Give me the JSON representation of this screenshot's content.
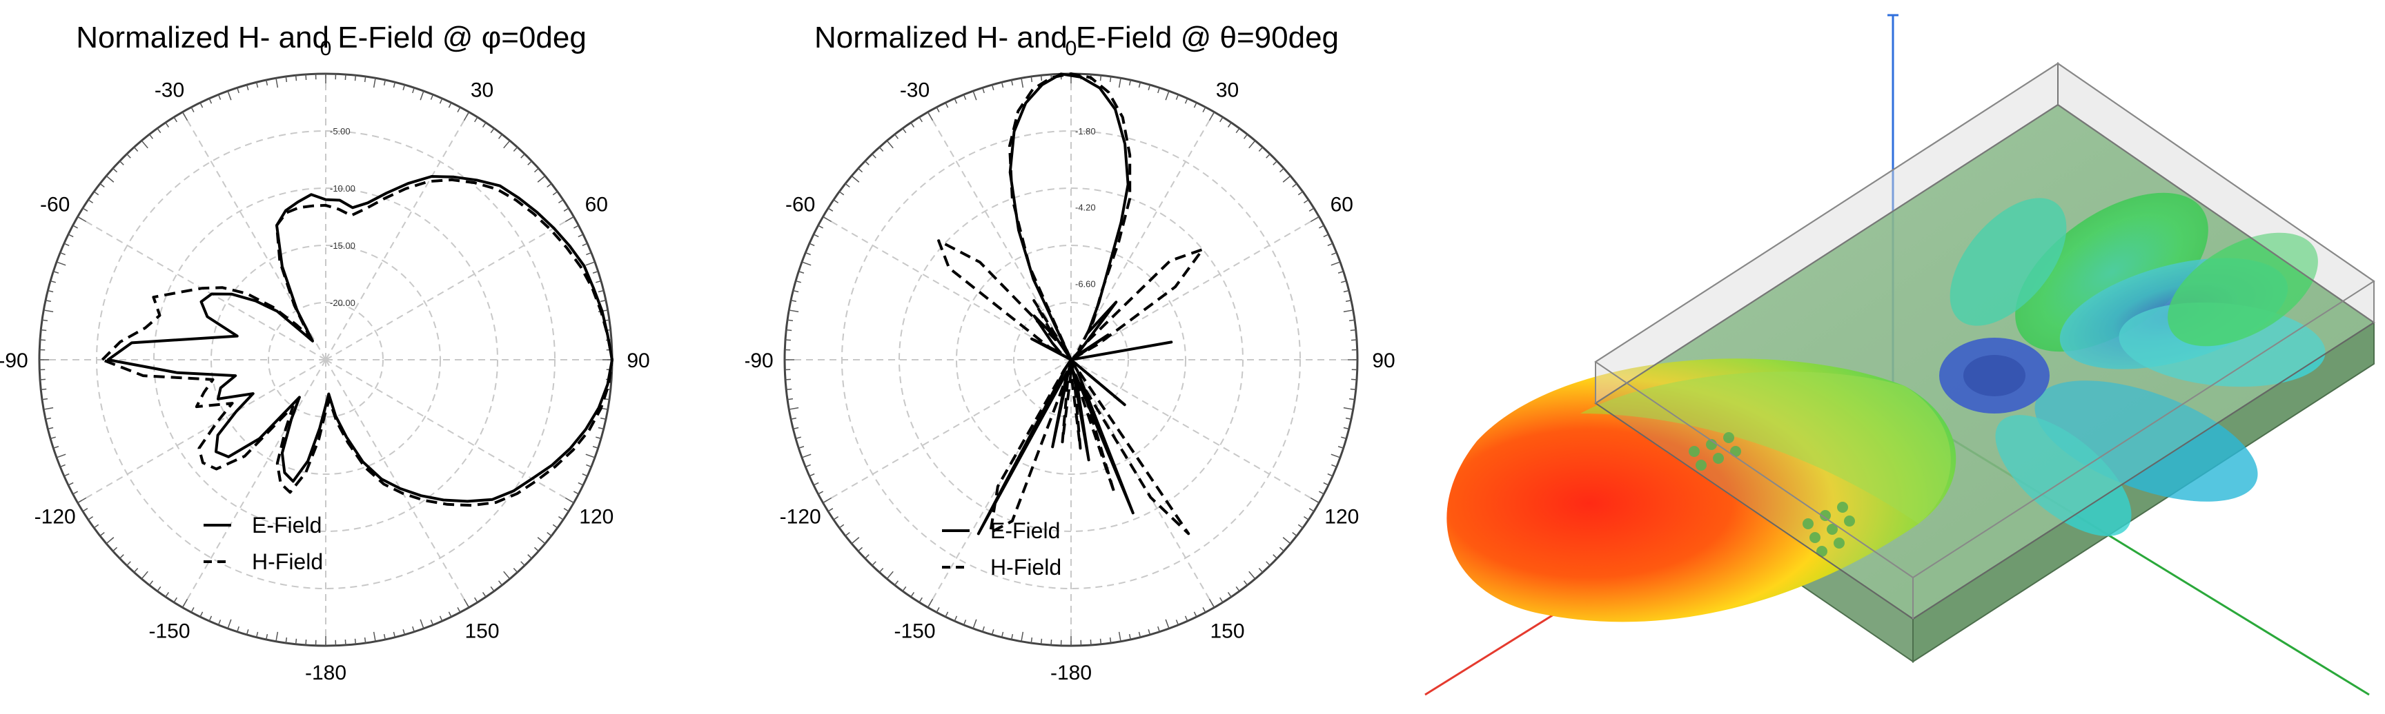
{
  "chart_data": [
    {
      "type": "polar",
      "title": "Normalized H- and E-Field @ φ=0deg",
      "angle_labels": [
        "0",
        "30",
        "60",
        "90",
        "120",
        "150",
        "-180",
        "-150",
        "-120",
        "-90",
        "-60",
        "-30"
      ],
      "radial_labels": [
        "-5.00",
        "-10.00",
        "-15.00",
        "-20.00"
      ],
      "radial_range_db": [
        -25,
        0
      ],
      "grid": true,
      "legend_position": "bottom-left",
      "series": [
        {
          "name": "E-Field",
          "line": "solid",
          "points": [
            [
              -90,
              -6
            ],
            [
              -85,
              -8
            ],
            [
              -75,
              -17
            ],
            [
              -70,
              -14
            ],
            [
              -65,
              -13
            ],
            [
              -60,
              -13.5
            ],
            [
              -55,
              -15
            ],
            [
              -50,
              -17
            ],
            [
              -45,
              -19
            ],
            [
              -40,
              -22
            ],
            [
              -35,
              -23
            ],
            [
              -30,
              -20
            ],
            [
              -25,
              -16
            ],
            [
              -20,
              -12.5
            ],
            [
              -15,
              -11.5
            ],
            [
              -10,
              -11
            ],
            [
              -5,
              -10.5
            ],
            [
              0,
              -11
            ],
            [
              5,
              -11
            ],
            [
              10,
              -11.5
            ],
            [
              15,
              -10.8
            ],
            [
              20,
              -9.5
            ],
            [
              25,
              -8
            ],
            [
              30,
              -6.5
            ],
            [
              35,
              -5.5
            ],
            [
              40,
              -4.5
            ],
            [
              45,
              -3.5
            ],
            [
              50,
              -3
            ],
            [
              55,
              -2.5
            ],
            [
              60,
              -2
            ],
            [
              65,
              -1.5
            ],
            [
              70,
              -1
            ],
            [
              75,
              -0.8
            ],
            [
              80,
              -0.5
            ],
            [
              85,
              -0.3
            ],
            [
              90,
              0
            ],
            [
              95,
              -0.3
            ],
            [
              100,
              -0.8
            ],
            [
              105,
              -1.5
            ],
            [
              110,
              -2.3
            ],
            [
              115,
              -3.2
            ],
            [
              120,
              -4.2
            ],
            [
              125,
              -5
            ],
            [
              130,
              -6
            ],
            [
              135,
              -7.5
            ],
            [
              140,
              -9
            ],
            [
              145,
              -10.5
            ],
            [
              150,
              -12
            ],
            [
              155,
              -13.5
            ],
            [
              160,
              -15.5
            ],
            [
              165,
              -18
            ],
            [
              170,
              -20
            ],
            [
              175,
              -22
            ],
            [
              180,
              -21
            ],
            [
              -175,
              -19
            ],
            [
              -170,
              -16
            ],
            [
              -165,
              -14
            ],
            [
              -160,
              -14.5
            ],
            [
              -155,
              -16
            ],
            [
              -150,
              -19
            ],
            [
              -145,
              -21
            ],
            [
              -140,
              -16
            ],
            [
              -135,
              -13
            ],
            [
              -130,
              -12.5
            ],
            [
              -125,
              -13.5
            ],
            [
              -120,
              -16
            ],
            [
              -115,
              -18
            ],
            [
              -110,
              -15
            ],
            [
              -105,
              -15.5
            ],
            [
              -100,
              -17
            ],
            [
              -95,
              -12
            ],
            [
              -90,
              -6
            ]
          ]
        },
        {
          "name": "H-Field",
          "line": "dashed",
          "points": [
            [
              -90,
              -5.5
            ],
            [
              -85,
              -7
            ],
            [
              -80,
              -9
            ],
            [
              -75,
              -10
            ],
            [
              -70,
              -9
            ],
            [
              -65,
              -11
            ],
            [
              -60,
              -12.5
            ],
            [
              -55,
              -14
            ],
            [
              -50,
              -16
            ],
            [
              -45,
              -18.5
            ],
            [
              -40,
              -21
            ],
            [
              -35,
              -22.5
            ],
            [
              -30,
              -19.5
            ],
            [
              -25,
              -15.5
            ],
            [
              -20,
              -12.5
            ],
            [
              -15,
              -11.7
            ],
            [
              -10,
              -11.5
            ],
            [
              -5,
              -11.5
            ],
            [
              0,
              -11.5
            ],
            [
              5,
              -11.8
            ],
            [
              10,
              -12.2
            ],
            [
              15,
              -11.3
            ],
            [
              20,
              -10
            ],
            [
              25,
              -8.5
            ],
            [
              30,
              -7
            ],
            [
              35,
              -5.8
            ],
            [
              40,
              -4.8
            ],
            [
              45,
              -3.9
            ],
            [
              50,
              -3.3
            ],
            [
              55,
              -2.8
            ],
            [
              60,
              -2.3
            ],
            [
              65,
              -1.8
            ],
            [
              70,
              -1.3
            ],
            [
              75,
              -0.9
            ],
            [
              80,
              -0.6
            ],
            [
              85,
              -0.3
            ],
            [
              90,
              0
            ],
            [
              95,
              -0.2
            ],
            [
              100,
              -0.6
            ],
            [
              105,
              -1.2
            ],
            [
              110,
              -2
            ],
            [
              115,
              -2.9
            ],
            [
              120,
              -3.8
            ],
            [
              125,
              -4.6
            ],
            [
              130,
              -5.6
            ],
            [
              135,
              -7
            ],
            [
              140,
              -8.5
            ],
            [
              145,
              -10
            ],
            [
              150,
              -11.5
            ],
            [
              155,
              -13
            ],
            [
              160,
              -15
            ],
            [
              165,
              -17.5
            ],
            [
              170,
              -19.5
            ],
            [
              175,
              -21.5
            ],
            [
              180,
              -20.5
            ],
            [
              -175,
              -18
            ],
            [
              -170,
              -15
            ],
            [
              -165,
              -13
            ],
            [
              -160,
              -13.5
            ],
            [
              -155,
              -15
            ],
            [
              -150,
              -18
            ],
            [
              -145,
              -20
            ],
            [
              -140,
              -14
            ],
            [
              -135,
              -11.5
            ],
            [
              -130,
              -11
            ],
            [
              -125,
              -11.5
            ],
            [
              -120,
              -14
            ],
            [
              -115,
              -16
            ],
            [
              -110,
              -13
            ],
            [
              -105,
              -14
            ],
            [
              -100,
              -15
            ],
            [
              -95,
              -9
            ],
            [
              -90,
              -5.5
            ]
          ]
        }
      ]
    },
    {
      "type": "polar",
      "title": "Normalized H- and E-Field @ θ=90deg",
      "angle_labels": [
        "0",
        "30",
        "60",
        "90",
        "120",
        "150",
        "-180",
        "-150",
        "-120",
        "-90",
        "-60",
        "-30"
      ],
      "radial_labels": [
        "-1.80",
        "-4.20",
        "-6.60"
      ],
      "radial_range_db": [
        -9,
        0
      ],
      "grid": true,
      "legend_position": "bottom-left",
      "series": [
        {
          "name": "E-Field",
          "line": "solid",
          "points": [
            [
              -30,
              -9
            ],
            [
              -25,
              -6.2
            ],
            [
              -22,
              -4.6
            ],
            [
              -18,
              -2.8
            ],
            [
              -14,
              -1.6
            ],
            [
              -10,
              -0.8
            ],
            [
              -6,
              -0.3
            ],
            [
              -2,
              0
            ],
            [
              2,
              -0.1
            ],
            [
              6,
              -0.4
            ],
            [
              10,
              -1.0
            ],
            [
              14,
              -2.0
            ],
            [
              18,
              -3.2
            ],
            [
              20,
              -4.4
            ],
            [
              22,
              -5.8
            ],
            [
              26,
              -7.0
            ],
            [
              32,
              -8.0
            ],
            [
              38,
              -6.7
            ],
            [
              43,
              -8.5
            ],
            [
              50,
              -8.9
            ],
            [
              56,
              -7.6
            ],
            [
              62,
              -8.8
            ],
            [
              70,
              -9
            ],
            [
              80,
              -5.8
            ],
            [
              90,
              -9
            ],
            [
              110,
              -9
            ],
            [
              130,
              -6.8
            ],
            [
              140,
              -9
            ],
            [
              150,
              -8.6
            ],
            [
              158,
              -3.8
            ],
            [
              163,
              -8.5
            ],
            [
              170,
              -5.8
            ],
            [
              176,
              -9
            ],
            [
              180,
              -8.6
            ],
            [
              -176,
              -9
            ],
            [
              -168,
              -6.2
            ],
            [
              -162,
              -8.6
            ],
            [
              -152,
              -2.8
            ],
            [
              -146,
              -8.8
            ],
            [
              -136,
              -9
            ],
            [
              -110,
              -9
            ],
            [
              -90,
              -9
            ],
            [
              -72,
              -9
            ],
            [
              -62,
              -7.6
            ],
            [
              -56,
              -8.6
            ],
            [
              -48,
              -8.2
            ],
            [
              -40,
              -7.2
            ],
            [
              -34,
              -8.2
            ],
            [
              -30,
              -9
            ]
          ]
        },
        {
          "name": "H-Field",
          "line": "dashed",
          "points": [
            [
              -30,
              -9
            ],
            [
              -24,
              -5.8
            ],
            [
              -20,
              -3.6
            ],
            [
              -16,
              -2.0
            ],
            [
              -12,
              -1.0
            ],
            [
              -8,
              -0.4
            ],
            [
              -4,
              -0.1
            ],
            [
              0,
              0
            ],
            [
              4,
              -0.1
            ],
            [
              8,
              -0.5
            ],
            [
              12,
              -1.2
            ],
            [
              16,
              -2.3
            ],
            [
              20,
              -3.6
            ],
            [
              22,
              -5.0
            ],
            [
              24,
              -6.6
            ],
            [
              30,
              -7.6
            ],
            [
              38,
              -8.6
            ],
            [
              45,
              -4.6
            ],
            [
              50,
              -3.6
            ],
            [
              55,
              -5.0
            ],
            [
              60,
              -8.0
            ],
            [
              70,
              -9
            ],
            [
              80,
              -9
            ],
            [
              110,
              -9
            ],
            [
              130,
              -7.0
            ],
            [
              138,
              -9
            ],
            [
              146,
              -2.4
            ],
            [
              150,
              -4.0
            ],
            [
              156,
              -8.2
            ],
            [
              162,
              -4.6
            ],
            [
              168,
              -8.6
            ],
            [
              174,
              -6.2
            ],
            [
              180,
              -8.6
            ],
            [
              -174,
              -6.4
            ],
            [
              -168,
              -8.6
            ],
            [
              -160,
              -3.6
            ],
            [
              -155,
              -3.0
            ],
            [
              -150,
              -4.4
            ],
            [
              -146,
              -8.6
            ],
            [
              -136,
              -9
            ],
            [
              -110,
              -9
            ],
            [
              -90,
              -9
            ],
            [
              -70,
              -9
            ],
            [
              -60,
              -8.2
            ],
            [
              -53,
              -4.2
            ],
            [
              -48,
              -3.4
            ],
            [
              -43,
              -4.8
            ],
            [
              -38,
              -8.2
            ],
            [
              -32,
              -6.8
            ],
            [
              -30,
              -9
            ]
          ]
        }
      ]
    }
  ],
  "scene3d": {
    "axis_colors": {
      "x": "#e53a2e",
      "y": "#2aa83a",
      "z": "#2f6fdc"
    },
    "board_color": "#7fb07f",
    "gain_colors": [
      "#e8261a",
      "#ffe21a",
      "#28d640",
      "#2ad2d8",
      "#1c33d8"
    ]
  }
}
